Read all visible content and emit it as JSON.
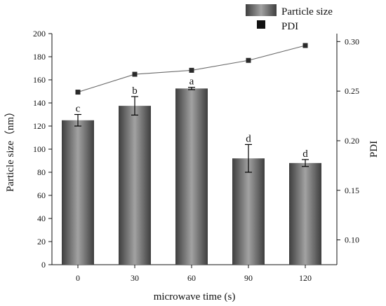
{
  "chart_data": {
    "type": "bar",
    "x_title": "microwave time (s)",
    "y_left_title": "Particle size（nm）",
    "y_right_title": "PDI",
    "categories": [
      "0",
      "30",
      "60",
      "90",
      "120"
    ],
    "left_axis": {
      "ylim": [
        0,
        200
      ],
      "ticks": [
        "0",
        "20",
        "40",
        "60",
        "80",
        "100",
        "120",
        "140",
        "160",
        "180",
        "200"
      ]
    },
    "right_axis": {
      "ylim": [
        0.075,
        0.308
      ],
      "ticks": [
        "0.10",
        "0.15",
        "0.20",
        "0.25",
        "0.30"
      ]
    },
    "series": [
      {
        "name": "Particle size",
        "type": "bar",
        "axis": "left",
        "values": [
          125,
          137.5,
          152.5,
          92,
          88
        ],
        "errors": [
          5,
          8,
          1,
          12,
          3
        ],
        "labels": [
          "c",
          "b",
          "a",
          "d",
          "d"
        ]
      },
      {
        "name": "PDI",
        "type": "line",
        "axis": "right",
        "values": [
          0.249,
          0.267,
          0.271,
          0.281,
          0.296
        ]
      }
    ],
    "legend_position": "top-right",
    "colors": {
      "bar_dark": "#3e3e3e",
      "bar_light": "#9a9a9a",
      "pdi_marker": "#2a2a2a",
      "pdi_line": "#6b6b6b"
    }
  }
}
